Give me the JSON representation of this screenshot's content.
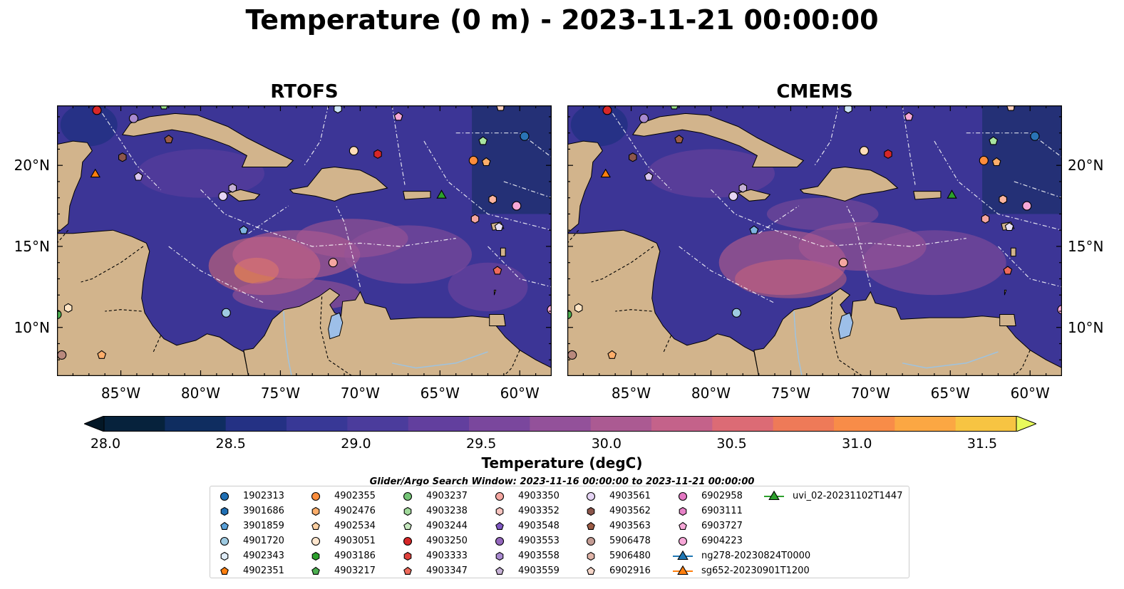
{
  "title": "Temperature (0 m) - 2023-11-21 00:00:00",
  "panels": [
    {
      "id": "rtofs",
      "title": "RTOFS"
    },
    {
      "id": "cmems",
      "title": "CMEMS"
    }
  ],
  "map_extent": {
    "lon_min": -89.0,
    "lon_max": -58.0,
    "lat_min": 7.0,
    "lat_max": 23.7
  },
  "lon_ticks": [
    {
      "value": -85,
      "label": "85°W"
    },
    {
      "value": -80,
      "label": "80°W"
    },
    {
      "value": -75,
      "label": "75°W"
    },
    {
      "value": -70,
      "label": "70°W"
    },
    {
      "value": -65,
      "label": "65°W"
    },
    {
      "value": -60,
      "label": "60°W"
    }
  ],
  "lat_ticks": [
    {
      "value": 20,
      "label": "20°N"
    },
    {
      "value": 15,
      "label": "15°N"
    },
    {
      "value": 10,
      "label": "10°N"
    }
  ],
  "colorbar": {
    "label": "Temperature (degC)",
    "min": 28.0,
    "max": 31.5,
    "ticks": [
      {
        "value": 28.0,
        "label": "28.0"
      },
      {
        "value": 28.5,
        "label": "28.5"
      },
      {
        "value": 29.0,
        "label": "29.0"
      },
      {
        "value": 29.5,
        "label": "29.5"
      },
      {
        "value": 30.0,
        "label": "30.0"
      },
      {
        "value": 30.5,
        "label": "30.5"
      },
      {
        "value": 31.0,
        "label": "31.0"
      },
      {
        "value": 31.5,
        "label": "31.5"
      }
    ],
    "colors": [
      "#06223c",
      "#0f2d60",
      "#243184",
      "#383896",
      "#4b3c9c",
      "#623f9e",
      "#7a479d",
      "#93519a",
      "#ab5a92",
      "#c4628a",
      "#dc6b75",
      "#ee7a58",
      "#f88c48",
      "#fba743",
      "#f7c442"
    ],
    "extend_low": "#031726",
    "extend_high": "#e8fa5b"
  },
  "search_window": "Glider/Argo Search Window: 2023-11-16 00:00:00 to 2023-11-21 00:00:00",
  "land_color": "#d2b48c",
  "ocean_color": "#3c3596",
  "markers": [
    {
      "lon": -86.5,
      "lat": 23.4,
      "shape": "circle",
      "color": "#d62728"
    },
    {
      "lon": -84.2,
      "lat": 22.9,
      "shape": "circle",
      "color": "#a889d0"
    },
    {
      "lon": -82.3,
      "lat": 23.7,
      "shape": "pentagon",
      "color": "#98df8a"
    },
    {
      "lon": -82.0,
      "lat": 21.6,
      "shape": "pentagon",
      "color": "#9c5b45"
    },
    {
      "lon": -84.9,
      "lat": 20.5,
      "shape": "hexagon",
      "color": "#8c564b"
    },
    {
      "lon": -86.6,
      "lat": 19.5,
      "shape": "triangle",
      "color": "#ff7f0e"
    },
    {
      "lon": -83.9,
      "lat": 19.3,
      "shape": "pentagon",
      "color": "#d9c7f0"
    },
    {
      "lon": -78.0,
      "lat": 18.6,
      "shape": "hexagon",
      "color": "#c5b0d5"
    },
    {
      "lon": -78.6,
      "lat": 18.1,
      "shape": "circle",
      "color": "#e6d5f5"
    },
    {
      "lon": -77.3,
      "lat": 16.0,
      "shape": "pentagon",
      "color": "#7db3e0"
    },
    {
      "lon": -71.4,
      "lat": 23.5,
      "shape": "hexagon",
      "color": "#cfe6f7"
    },
    {
      "lon": -70.4,
      "lat": 20.9,
      "shape": "circle",
      "color": "#ffdcb8"
    },
    {
      "lon": -68.9,
      "lat": 20.7,
      "shape": "hexagon",
      "color": "#d62728"
    },
    {
      "lon": -67.6,
      "lat": 23.0,
      "shape": "pentagon",
      "color": "#f7a8d8"
    },
    {
      "lon": -61.2,
      "lat": 23.6,
      "shape": "pentagon",
      "color": "#ffd1bc"
    },
    {
      "lon": -59.7,
      "lat": 21.8,
      "shape": "circle",
      "color": "#2a74b5"
    },
    {
      "lon": -62.3,
      "lat": 21.5,
      "shape": "pentagon",
      "color": "#a8e5a0"
    },
    {
      "lon": -62.9,
      "lat": 20.3,
      "shape": "circle",
      "color": "#fd8d3c"
    },
    {
      "lon": -62.1,
      "lat": 20.2,
      "shape": "pentagon",
      "color": "#fdae6b"
    },
    {
      "lon": -64.9,
      "lat": 18.2,
      "shape": "triangle",
      "color": "#2ca02c"
    },
    {
      "lon": -61.7,
      "lat": 17.9,
      "shape": "hexagon",
      "color": "#fbb4a0"
    },
    {
      "lon": -60.2,
      "lat": 17.5,
      "shape": "circle",
      "color": "#f7a8d8"
    },
    {
      "lon": -62.8,
      "lat": 16.7,
      "shape": "hexagon",
      "color": "#f4a6a0"
    },
    {
      "lon": -61.3,
      "lat": 16.2,
      "shape": "pentagon",
      "color": "#e8e0f5"
    },
    {
      "lon": -61.4,
      "lat": 13.5,
      "shape": "pentagon",
      "color": "#ef6a5b"
    },
    {
      "lon": -71.7,
      "lat": 14.0,
      "shape": "circle",
      "color": "#f4a6a0"
    },
    {
      "lon": -78.4,
      "lat": 10.9,
      "shape": "circle",
      "color": "#9ecae1"
    },
    {
      "lon": -88.3,
      "lat": 11.2,
      "shape": "hexagon",
      "color": "#ffe4c4"
    },
    {
      "lon": -88.7,
      "lat": 8.3,
      "shape": "circle",
      "color": "#b9897d"
    },
    {
      "lon": -86.2,
      "lat": 8.3,
      "shape": "pentagon",
      "color": "#fdae6b"
    },
    {
      "lon": -89.0,
      "lat": 10.8,
      "shape": "circle",
      "color": "#4caf50"
    },
    {
      "lon": -58.0,
      "lat": 11.1,
      "shape": "circle",
      "color": "#f7a8d8"
    }
  ],
  "legend": [
    {
      "label": "1902313",
      "shape": "circle",
      "color": "#1f6fb4"
    },
    {
      "label": "3901686",
      "shape": "hexagon",
      "color": "#1f6fb4"
    },
    {
      "label": "3901859",
      "shape": "pentagon",
      "color": "#5aa0d8"
    },
    {
      "label": "4901720",
      "shape": "circle",
      "color": "#9ecae1"
    },
    {
      "label": "4902343",
      "shape": "hexagon",
      "color": "#deebf7"
    },
    {
      "label": "4902351",
      "shape": "pentagon",
      "color": "#ff7f0e"
    },
    {
      "label": "4902355",
      "shape": "circle",
      "color": "#fd8d3c"
    },
    {
      "label": "4902476",
      "shape": "hexagon",
      "color": "#fdae6b"
    },
    {
      "label": "4902534",
      "shape": "pentagon",
      "color": "#fdd0a2"
    },
    {
      "label": "4903051",
      "shape": "circle",
      "color": "#fee6ce"
    },
    {
      "label": "4903186",
      "shape": "hexagon",
      "color": "#2ca02c"
    },
    {
      "label": "4903217",
      "shape": "pentagon",
      "color": "#4caf50"
    },
    {
      "label": "4903237",
      "shape": "circle",
      "color": "#74c476"
    },
    {
      "label": "4903238",
      "shape": "hexagon",
      "color": "#a1d99b"
    },
    {
      "label": "4903244",
      "shape": "pentagon",
      "color": "#c7e9c0"
    },
    {
      "label": "4903250",
      "shape": "circle",
      "color": "#d62728"
    },
    {
      "label": "4903333",
      "shape": "hexagon",
      "color": "#e0413c"
    },
    {
      "label": "4903347",
      "shape": "pentagon",
      "color": "#ef6a5b"
    },
    {
      "label": "4903350",
      "shape": "circle",
      "color": "#f4a6a0"
    },
    {
      "label": "4903352",
      "shape": "hexagon",
      "color": "#f8c4bf"
    },
    {
      "label": "4903548",
      "shape": "pentagon",
      "color": "#7e57c2"
    },
    {
      "label": "4903553",
      "shape": "circle",
      "color": "#9467bd"
    },
    {
      "label": "4903558",
      "shape": "hexagon",
      "color": "#a889d0"
    },
    {
      "label": "4903559",
      "shape": "pentagon",
      "color": "#c5b0d5"
    },
    {
      "label": "4903561",
      "shape": "circle",
      "color": "#e6d5f5"
    },
    {
      "label": "4903562",
      "shape": "hexagon",
      "color": "#8c564b"
    },
    {
      "label": "4903563",
      "shape": "pentagon",
      "color": "#9c5b45"
    },
    {
      "label": "5906478",
      "shape": "circle",
      "color": "#c49c94"
    },
    {
      "label": "5906480",
      "shape": "hexagon",
      "color": "#e0b4a8"
    },
    {
      "label": "6902916",
      "shape": "pentagon",
      "color": "#f5d5c8"
    },
    {
      "label": "6902958",
      "shape": "circle",
      "color": "#e377c2"
    },
    {
      "label": "6903111",
      "shape": "hexagon",
      "color": "#e883c8"
    },
    {
      "label": "6903727",
      "shape": "pentagon",
      "color": "#f7a8d8"
    },
    {
      "label": "6904223",
      "shape": "circle",
      "color": "#f7a8d8"
    },
    {
      "label": "ng278-20230824T0000",
      "shape": "triangle-line",
      "color": "#1f77b4"
    },
    {
      "label": "sg652-20230901T1200",
      "shape": "triangle-line",
      "color": "#ff7f0e"
    },
    {
      "label": "uvi_02-20231102T1447",
      "shape": "triangle-line",
      "color": "#2ca02c"
    }
  ]
}
